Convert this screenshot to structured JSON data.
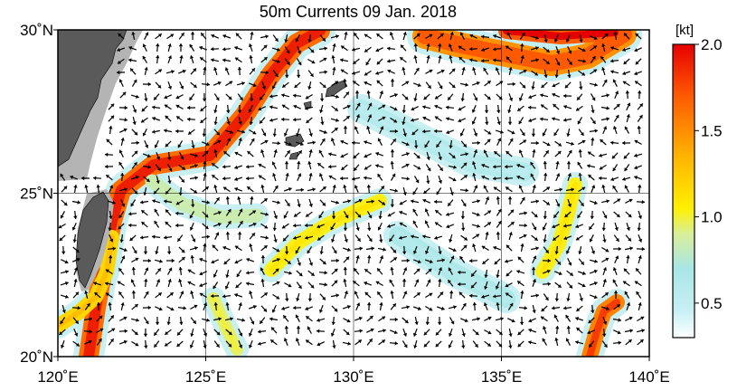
{
  "title": "50m Currents  09 Jan. 2018",
  "map": {
    "lon_range": [
      120,
      140
    ],
    "lat_range": [
      20,
      30
    ],
    "x_ticks": [
      {
        "lon": 120,
        "label": "120˚E"
      },
      {
        "lon": 125,
        "label": "125˚E"
      },
      {
        "lon": 130,
        "label": "130˚E"
      },
      {
        "lon": 135,
        "label": "135˚E"
      },
      {
        "lon": 140,
        "label": "140˚E"
      }
    ],
    "y_ticks": [
      {
        "lat": 30,
        "label": "30˚N"
      },
      {
        "lat": 25,
        "label": "25˚N"
      },
      {
        "lat": 20,
        "label": "20˚N"
      }
    ],
    "grid": true,
    "land_color": "#5a5a5a",
    "shelf_color": "#b4b4b4",
    "arrow_color": "#000000"
  },
  "colorbar": {
    "unit_label": "[kt]",
    "range": [
      0.3,
      2.0
    ],
    "ticks": [
      {
        "value": 2.0,
        "label": "2.0"
      },
      {
        "value": 1.5,
        "label": "1.5"
      },
      {
        "value": 1.0,
        "label": "1.0"
      },
      {
        "value": 0.5,
        "label": "0.5"
      }
    ],
    "stops": [
      {
        "value": 0.3,
        "color": "#ffffff"
      },
      {
        "value": 0.45,
        "color": "#c8f0f5"
      },
      {
        "value": 0.7,
        "color": "#a8e6e6"
      },
      {
        "value": 0.9,
        "color": "#d8ef9a"
      },
      {
        "value": 1.05,
        "color": "#fff000"
      },
      {
        "value": 1.35,
        "color": "#ffb400"
      },
      {
        "value": 1.7,
        "color": "#ff5a00"
      },
      {
        "value": 2.0,
        "color": "#e60000"
      }
    ]
  }
}
